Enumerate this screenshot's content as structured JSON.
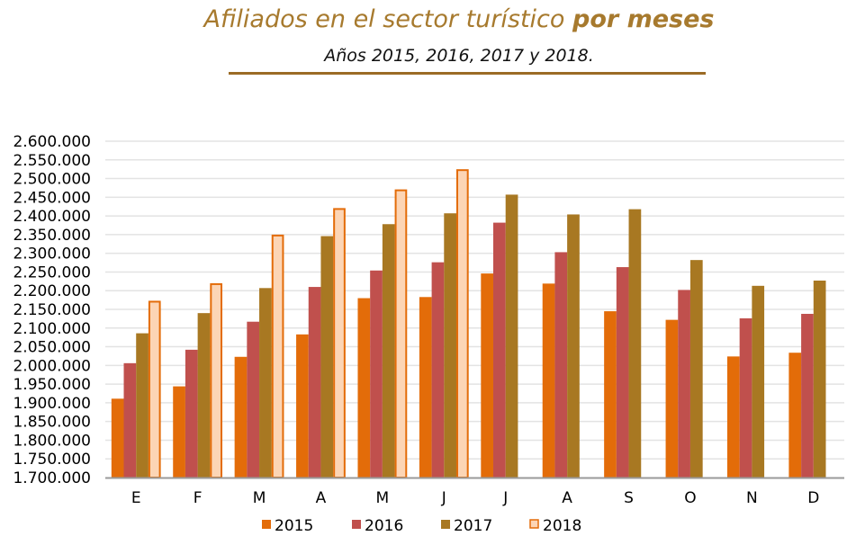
{
  "header": {
    "title_main": "Afiliados en el sector turístico",
    "title_bold": "por meses",
    "subtitle": "Años 2015, 2016, 2017 y 2018."
  },
  "colors": {
    "title": "#a77a2e",
    "rule": "#9b6b25",
    "grid": "#e3e3e3",
    "axis": "#9a9a9a"
  },
  "chart_data": {
    "type": "bar",
    "title": "Afiliados en el sector turístico por meses",
    "subtitle": "Años 2015, 2016, 2017 y 2018.",
    "xlabel": "",
    "ylabel": "",
    "ylim": [
      1700000,
      2600000
    ],
    "ytick_step": 50000,
    "yticks": [
      "1.700.000",
      "1.750.000",
      "1.800.000",
      "1.850.000",
      "1.900.000",
      "1.950.000",
      "2.000.000",
      "2.050.000",
      "2.100.000",
      "2.150.000",
      "2.200.000",
      "2.250.000",
      "2.300.000",
      "2.350.000",
      "2.400.000",
      "2.450.000",
      "2.500.000",
      "2.550.000",
      "2.600.000"
    ],
    "grid": true,
    "legend_position": "bottom",
    "categories": [
      "E",
      "F",
      "M",
      "A",
      "M",
      "J",
      "J",
      "A",
      "S",
      "O",
      "N",
      "D"
    ],
    "series": [
      {
        "name": "2015",
        "color": "#e36c09",
        "border": "#e36c09",
        "values": [
          1911000,
          1944000,
          2023000,
          2083000,
          2180000,
          2183000,
          2246000,
          2219000,
          2145000,
          2122000,
          2024000,
          2034000
        ]
      },
      {
        "name": "2016",
        "color": "#c0504d",
        "border": "#c0504d",
        "values": [
          2006000,
          2042000,
          2117000,
          2210000,
          2254000,
          2276000,
          2382000,
          2303000,
          2263000,
          2202000,
          2126000,
          2138000
        ]
      },
      {
        "name": "2017",
        "color": "#a87822",
        "border": "#a87822",
        "values": [
          2086000,
          2140000,
          2207000,
          2346000,
          2378000,
          2407000,
          2457000,
          2404000,
          2418000,
          2282000,
          2213000,
          2227000
        ]
      },
      {
        "name": "2018",
        "color": "#fcd5b5",
        "border": "#e36c09",
        "values": [
          2173000,
          2220000,
          2350000,
          2421000,
          2471000,
          2525000,
          null,
          null,
          null,
          null,
          null,
          null
        ]
      }
    ]
  }
}
